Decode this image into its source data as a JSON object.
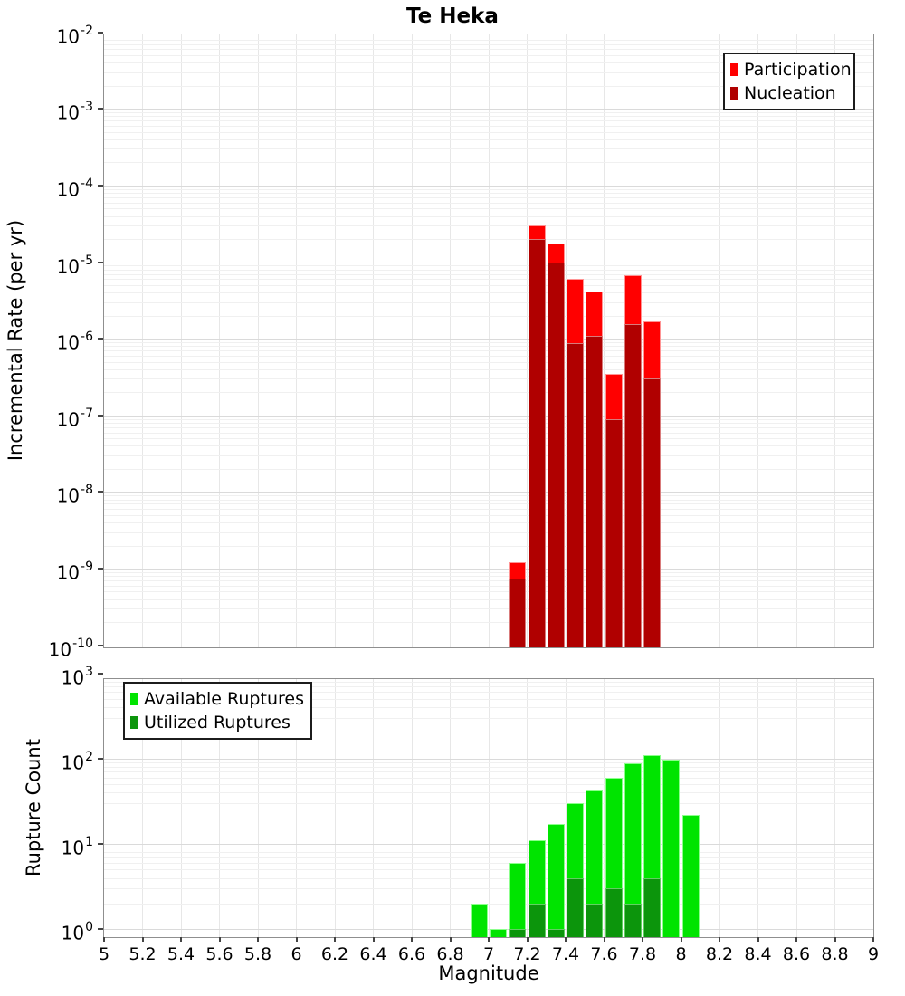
{
  "title": "Te Heka",
  "xlabel": "Magnitude",
  "chart_data": [
    {
      "type": "bar",
      "title": "Te Heka",
      "ylabel": "Incremental Rate (per yr)",
      "xlabel": "",
      "yscale": "log",
      "ylim": [
        1e-10,
        0.01
      ],
      "xlim": [
        5,
        9
      ],
      "bin_width": 0.1,
      "categories": [
        7.15,
        7.25,
        7.35,
        7.45,
        7.55,
        7.65,
        7.75,
        7.85
      ],
      "series": [
        {
          "name": "Participation",
          "color": "#ff0000",
          "edge_color": "#ff9494",
          "values": [
            1.2e-09,
            3e-05,
            1.75e-05,
            6e-06,
            4.1e-06,
            3.5e-07,
            6.8e-06,
            1.7e-06
          ]
        },
        {
          "name": "Nucleation",
          "color": "#b00000",
          "edge_color": "#d97b7b",
          "values": [
            7.5e-10,
            2e-05,
            1e-05,
            8.7e-07,
            1.1e-06,
            8.8e-08,
            1.55e-06,
            3e-07
          ]
        }
      ],
      "y_ticks": [
        "10^-2",
        "10^-3",
        "10^-4",
        "10^-5",
        "10^-6",
        "10^-7",
        "10^-8",
        "10^-9",
        "10^-10"
      ],
      "legend_position": "top-right",
      "grid": true
    },
    {
      "type": "bar",
      "title": "",
      "ylabel": "Rupture Count",
      "xlabel": "Magnitude",
      "yscale": "log",
      "ylim": [
        1,
        1000
      ],
      "xlim": [
        5,
        9
      ],
      "bin_width": 0.1,
      "categories": [
        6.95,
        7.05,
        7.15,
        7.25,
        7.35,
        7.45,
        7.55,
        7.65,
        7.75,
        7.85,
        7.95,
        8.05
      ],
      "series": [
        {
          "name": "Available Ruptures",
          "color": "#00e400",
          "edge_color": "#8cff8c",
          "values": [
            2,
            1,
            6,
            11,
            17,
            30,
            42,
            60,
            88,
            110,
            97,
            22
          ]
        },
        {
          "name": "Utilized Ruptures",
          "color": "#0c950c",
          "edge_color": "#63cf63",
          "values": [
            0,
            0,
            1,
            2,
            1,
            4,
            2,
            3,
            2,
            4,
            0,
            0
          ]
        }
      ],
      "y_ticks": [
        "10^0",
        "10^1",
        "10^2",
        "10^3"
      ],
      "x_tick_labels": [
        "5",
        "5.2",
        "5.4",
        "5.6",
        "5.8",
        "6",
        "6.2",
        "6.4",
        "6.6",
        "6.8",
        "7",
        "7.2",
        "7.4",
        "7.6",
        "7.8",
        "8",
        "8.2",
        "8.4",
        "8.6",
        "8.8",
        "9"
      ],
      "legend_position": "top-left",
      "grid": true
    }
  ]
}
